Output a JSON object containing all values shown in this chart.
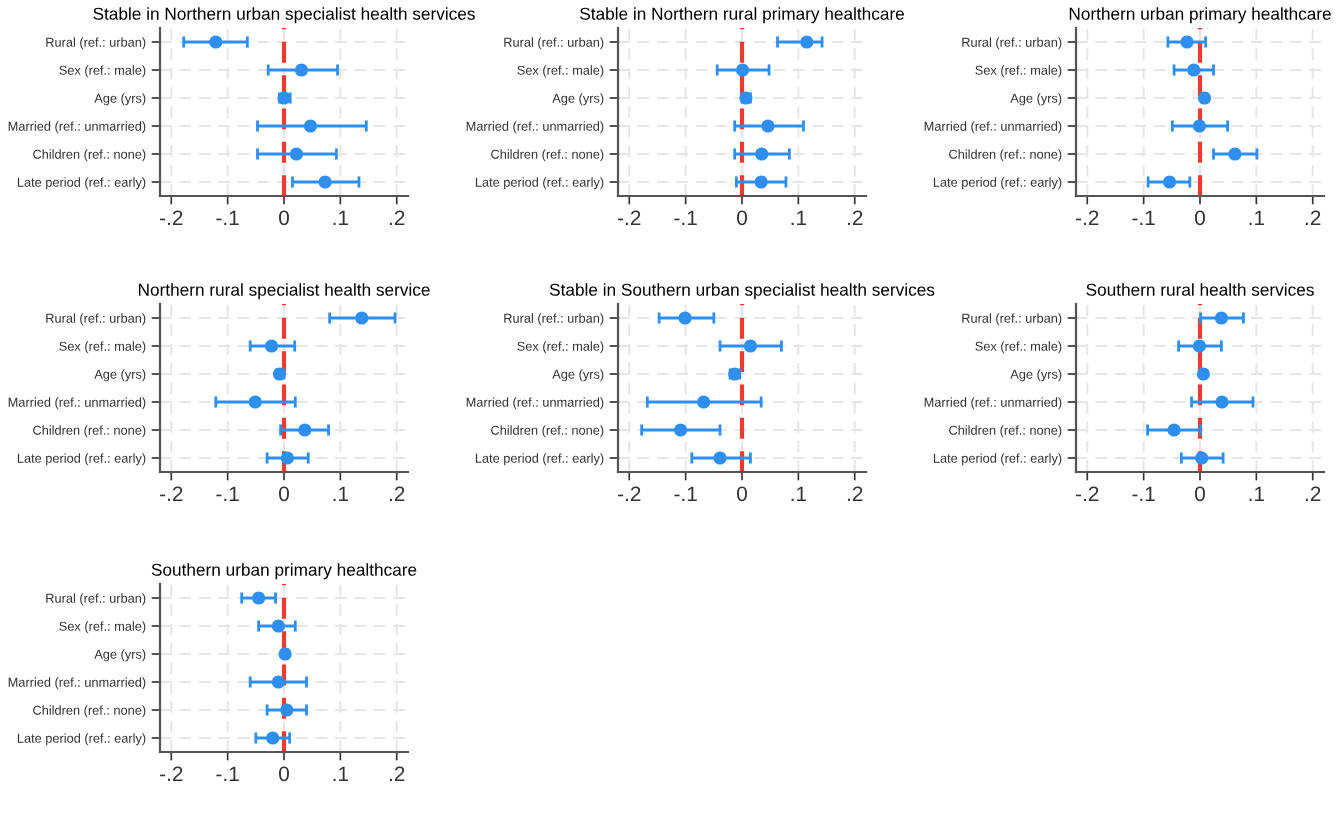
{
  "chart_data": [
    {
      "type": "scatter",
      "orientation": "horizontal",
      "title": "Stable in Northern urban specialist health services",
      "categories": [
        "Rural (ref.: urban)",
        "Sex (ref.: male)",
        "Age (yrs)",
        "Married (ref.: unmarried)",
        "Children (ref.: none)",
        "Late period (ref.: early)"
      ],
      "color": "#2e8ff0",
      "marker": "circle",
      "grid": true,
      "values": [
        -0.121,
        0.031,
        0,
        0.047,
        0.022,
        0.073
      ],
      "errors": [
        [
          -0.178,
          -0.065
        ],
        [
          -0.028,
          0.095
        ],
        [
          -0.008,
          0.011
        ],
        [
          -0.047,
          0.146
        ],
        [
          -0.047,
          0.093
        ],
        [
          0.015,
          0.133
        ]
      ],
      "xlim": [
        -0.22,
        0.22
      ],
      "xticks": [
        {
          "value": -0.2,
          "label": "-.2"
        },
        {
          "value": -0.1,
          "label": "-.1"
        },
        0,
        {
          "value": 0.1,
          "label": ".1"
        },
        {
          "value": 0.2,
          "label": ".2"
        }
      ],
      "ref_lines": [
        {
          "axis": "x",
          "value": 0,
          "color": "#ee3b30",
          "line_style": "dashed"
        }
      ]
    },
    {
      "type": "scatter",
      "orientation": "horizontal",
      "title": "Stable in Northern rural primary healthcare",
      "categories": [
        "Rural (ref.: urban)",
        "Sex (ref.: male)",
        "Age (yrs)",
        "Married (ref.: unmarried)",
        "Children (ref.: none)",
        "Late period (ref.: early)"
      ],
      "color": "#2e8ff0",
      "marker": "circle",
      "grid": true,
      "values": [
        0.115,
        0.001,
        0.007,
        0.046,
        0.035,
        0.034
      ],
      "errors": [
        [
          0.063,
          0.142
        ],
        [
          -0.044,
          0.048
        ],
        [
          0,
          0.015
        ],
        [
          -0.013,
          0.109
        ],
        [
          -0.013,
          0.084
        ],
        [
          -0.01,
          0.078
        ]
      ],
      "xlim": [
        -0.22,
        0.22
      ],
      "xticks": [
        {
          "value": -0.2,
          "label": "-.2"
        },
        {
          "value": -0.1,
          "label": "-.1"
        },
        0,
        {
          "value": 0.1,
          "label": ".1"
        },
        {
          "value": 0.2,
          "label": ".2"
        }
      ],
      "ref_lines": [
        {
          "axis": "x",
          "value": 0,
          "color": "#ee3b30",
          "line_style": "dashed"
        }
      ]
    },
    {
      "type": "scatter",
      "orientation": "horizontal",
      "title": "Northern urban primary healthcare",
      "categories": [
        "Rural (ref.: urban)",
        "Sex (ref.: male)",
        "Age (yrs)",
        "Married (ref.: unmarried)",
        "Children (ref.: none)",
        "Late period (ref.: early)"
      ],
      "color": "#2e8ff0",
      "marker": "circle",
      "grid": true,
      "values": [
        -0.023,
        -0.011,
        0.008,
        -0.001,
        0.062,
        -0.054
      ],
      "errors": [
        [
          -0.057,
          0.01
        ],
        [
          -0.046,
          0.024
        ],
        [
          0.003,
          0.012
        ],
        [
          -0.049,
          0.049
        ],
        [
          0.024,
          0.101
        ],
        [
          -0.092,
          -0.018
        ]
      ],
      "xlim": [
        -0.22,
        0.22
      ],
      "xticks": [
        {
          "value": -0.2,
          "label": "-.2"
        },
        {
          "value": -0.1,
          "label": "-.1"
        },
        0,
        {
          "value": 0.1,
          "label": ".1"
        },
        {
          "value": 0.2,
          "label": ".2"
        }
      ],
      "ref_lines": [
        {
          "axis": "x",
          "value": 0,
          "color": "#ee3b30",
          "line_style": "dashed"
        }
      ]
    },
    {
      "type": "scatter",
      "orientation": "horizontal",
      "title": "Northern rural specialist health service",
      "categories": [
        "Rural (ref.: urban)",
        "Sex (ref.: male)",
        "Age (yrs)",
        "Married (ref.: unmarried)",
        "Children (ref.: none)",
        "Late period (ref.: early)"
      ],
      "color": "#2e8ff0",
      "marker": "circle",
      "grid": true,
      "values": [
        0.138,
        -0.022,
        -0.008,
        -0.051,
        0.037,
        0.006
      ],
      "errors": [
        [
          0.081,
          0.197
        ],
        [
          -0.06,
          0.019
        ],
        [
          -0.013,
          0
        ],
        [
          -0.121,
          0.02
        ],
        [
          -0.006,
          0.079
        ],
        [
          -0.03,
          0.043
        ]
      ],
      "xlim": [
        -0.22,
        0.22
      ],
      "xticks": [
        {
          "value": -0.2,
          "label": "-.2"
        },
        {
          "value": -0.1,
          "label": "-.1"
        },
        0,
        {
          "value": 0.1,
          "label": ".1"
        },
        {
          "value": 0.2,
          "label": ".2"
        }
      ],
      "ref_lines": [
        {
          "axis": "x",
          "value": 0,
          "color": "#ee3b30",
          "line_style": "dashed"
        }
      ]
    },
    {
      "type": "scatter",
      "orientation": "horizontal",
      "title": "Stable in Southern urban specialist health services",
      "categories": [
        "Rural (ref.: urban)",
        "Sex (ref.: male)",
        "Age (yrs)",
        "Married (ref.: unmarried)",
        "Children (ref.: none)",
        "Late period (ref.: early)"
      ],
      "color": "#2e8ff0",
      "marker": "circle",
      "grid": true,
      "values": [
        -0.101,
        0.015,
        -0.013,
        -0.068,
        -0.109,
        -0.039
      ],
      "errors": [
        [
          -0.147,
          -0.05
        ],
        [
          -0.039,
          0.07
        ],
        [
          -0.021,
          -0.004
        ],
        [
          -0.168,
          0.034
        ],
        [
          -0.178,
          -0.039
        ],
        [
          -0.089,
          0.015
        ]
      ],
      "xlim": [
        -0.22,
        0.22
      ],
      "xticks": [
        {
          "value": -0.2,
          "label": "-.2"
        },
        {
          "value": -0.1,
          "label": "-.1"
        },
        0,
        {
          "value": 0.1,
          "label": ".1"
        },
        {
          "value": 0.2,
          "label": ".2"
        }
      ],
      "ref_lines": [
        {
          "axis": "x",
          "value": 0,
          "color": "#ee3b30",
          "line_style": "dashed"
        }
      ]
    },
    {
      "type": "scatter",
      "orientation": "horizontal",
      "title": "Southern rural health services",
      "categories": [
        "Rural (ref.: urban)",
        "Sex (ref.: male)",
        "Age (yrs)",
        "Married (ref.: unmarried)",
        "Children (ref.: none)",
        "Late period (ref.: early)"
      ],
      "color": "#2e8ff0",
      "marker": "circle",
      "grid": true,
      "values": [
        0.038,
        -0.001,
        0.006,
        0.039,
        -0.046,
        0.003
      ],
      "errors": [
        [
          0.001,
          0.077
        ],
        [
          -0.038,
          0.038
        ],
        [
          0.003,
          0.009
        ],
        [
          -0.015,
          0.094
        ],
        [
          -0.093,
          0.001
        ],
        [
          -0.033,
          0.041
        ]
      ],
      "xlim": [
        -0.22,
        0.22
      ],
      "xticks": [
        {
          "value": -0.2,
          "label": "-.2"
        },
        {
          "value": -0.1,
          "label": "-.1"
        },
        0,
        {
          "value": 0.1,
          "label": ".1"
        },
        {
          "value": 0.2,
          "label": ".2"
        }
      ],
      "ref_lines": [
        {
          "axis": "x",
          "value": 0,
          "color": "#ee3b30",
          "line_style": "dashed"
        }
      ]
    },
    {
      "type": "scatter",
      "orientation": "horizontal",
      "title": "Southern urban primary healthcare",
      "categories": [
        "Rural (ref.: urban)",
        "Sex (ref.: male)",
        "Age (yrs)",
        "Married (ref.: unmarried)",
        "Children (ref.: none)",
        "Late period (ref.: early)"
      ],
      "color": "#2e8ff0",
      "marker": "circle",
      "grid": true,
      "values": [
        -0.045,
        -0.01,
        0.002,
        -0.01,
        0.005,
        -0.02
      ],
      "errors": [
        [
          -0.075,
          -0.015
        ],
        [
          -0.045,
          0.02
        ],
        [
          -0.002,
          0.006
        ],
        [
          -0.06,
          0.04
        ],
        [
          -0.03,
          0.04
        ],
        [
          -0.05,
          0.01
        ]
      ],
      "xlim": [
        -0.22,
        0.22
      ],
      "xticks": [
        {
          "value": -0.2,
          "label": "-.2"
        },
        {
          "value": -0.1,
          "label": "-.1"
        },
        0,
        {
          "value": 0.1,
          "label": ".1"
        },
        {
          "value": 0.2,
          "label": ".2"
        }
      ],
      "ref_lines": [
        {
          "axis": "x",
          "value": 0,
          "color": "#ee3b30",
          "line_style": "dashed"
        }
      ]
    }
  ]
}
